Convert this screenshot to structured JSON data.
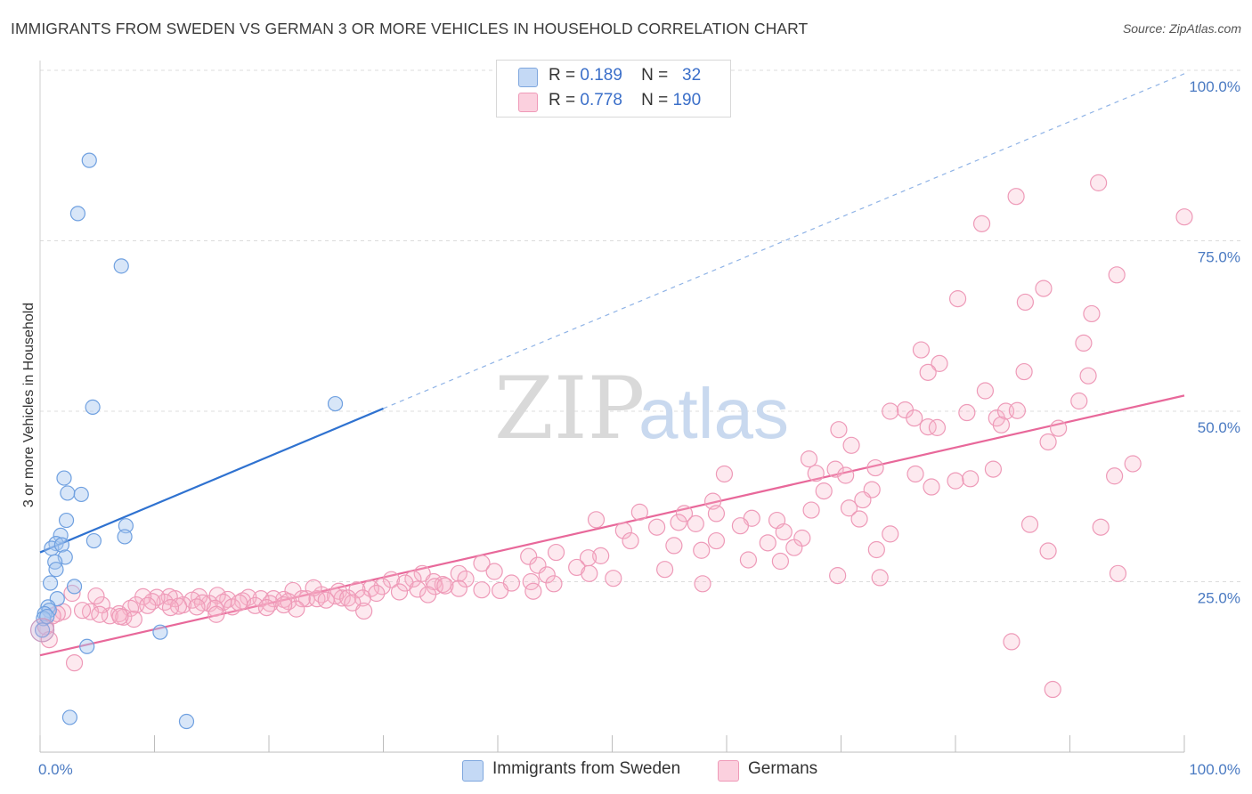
{
  "header": {
    "title": "IMMIGRANTS FROM SWEDEN VS GERMAN 3 OR MORE VEHICLES IN HOUSEHOLD CORRELATION CHART",
    "source": "Source: ZipAtlas.com"
  },
  "watermark": {
    "zip": "ZIP",
    "atlas": "atlas"
  },
  "legend": {
    "rows": [
      {
        "r_label": "R =",
        "r_value": "0.189",
        "n_label": "N =",
        "n_value": "32",
        "color": "#a8c8f0"
      },
      {
        "r_label": "R =",
        "r_value": "0.778",
        "n_label": "N =",
        "n_value": "190",
        "color": "#f7b6cb"
      }
    ]
  },
  "bottom_legend": {
    "series1": "Immigrants from Sweden",
    "series2": "Germans"
  },
  "chart_data": {
    "type": "scatter",
    "title": "IMMIGRANTS FROM SWEDEN VS GERMAN 3 OR MORE VEHICLES IN HOUSEHOLD CORRELATION CHART",
    "ylabel": "3 or more Vehicles in Household",
    "xlabel": "",
    "x_tick_labels": [
      "0.0%",
      "100.0%"
    ],
    "y_tick_labels": [
      "25.0%",
      "50.0%",
      "75.0%",
      "100.0%"
    ],
    "xlim": [
      0,
      100
    ],
    "ylim": [
      0,
      100
    ],
    "grid": true,
    "legend_position": "top-center",
    "colors": {
      "blue": "#6fa0e0",
      "blue_line": "#2f72d0",
      "pink": "#f08fb0",
      "pink_line": "#e8689a",
      "tick": "#4a7ac2"
    },
    "series": [
      {
        "name": "Immigrants from Sweden",
        "r": 0.189,
        "n": 32,
        "trend": {
          "x0": 0,
          "y0": 29.3,
          "x1": 30,
          "y1": 50.4,
          "dashed_to": [
            100,
            99.5
          ]
        },
        "points": [
          [
            4.3,
            86.8
          ],
          [
            3.3,
            79.0
          ],
          [
            7.1,
            71.3
          ],
          [
            4.6,
            50.6
          ],
          [
            25.8,
            51.1
          ],
          [
            2.1,
            40.2
          ],
          [
            2.4,
            38.0
          ],
          [
            3.6,
            37.8
          ],
          [
            2.3,
            34.0
          ],
          [
            7.5,
            33.2
          ],
          [
            1.8,
            31.8
          ],
          [
            1.4,
            30.6
          ],
          [
            4.7,
            31.0
          ],
          [
            7.4,
            31.6
          ],
          [
            1.0,
            29.9
          ],
          [
            1.9,
            30.4
          ],
          [
            2.2,
            28.6
          ],
          [
            1.3,
            27.9
          ],
          [
            1.4,
            26.8
          ],
          [
            0.9,
            24.8
          ],
          [
            3.0,
            24.3
          ],
          [
            1.5,
            22.5
          ],
          [
            0.7,
            21.3
          ],
          [
            0.8,
            20.8
          ],
          [
            0.4,
            20.3
          ],
          [
            0.3,
            19.6
          ],
          [
            0.6,
            19.9
          ],
          [
            0.2,
            17.9
          ],
          [
            10.5,
            17.6
          ],
          [
            4.1,
            15.5
          ],
          [
            2.6,
            5.1
          ],
          [
            12.8,
            4.5
          ]
        ]
      },
      {
        "name": "Germans",
        "r": 0.778,
        "n": 190,
        "trend": {
          "x0": 0,
          "y0": 14.2,
          "x1": 100,
          "y1": 52.3
        },
        "points": [
          [
            92.5,
            83.5
          ],
          [
            85.3,
            81.5
          ],
          [
            100.0,
            78.5
          ],
          [
            82.3,
            77.5
          ],
          [
            94.1,
            70.0
          ],
          [
            87.7,
            68.0
          ],
          [
            80.2,
            66.5
          ],
          [
            86.1,
            66.0
          ],
          [
            91.9,
            64.3
          ],
          [
            91.2,
            60.0
          ],
          [
            77.0,
            59.0
          ],
          [
            78.6,
            57.0
          ],
          [
            77.6,
            55.7
          ],
          [
            86.0,
            55.8
          ],
          [
            91.6,
            55.2
          ],
          [
            82.6,
            53.0
          ],
          [
            75.6,
            50.2
          ],
          [
            74.3,
            50.0
          ],
          [
            90.8,
            51.5
          ],
          [
            81.0,
            49.8
          ],
          [
            83.6,
            49.0
          ],
          [
            84.4,
            50.0
          ],
          [
            85.4,
            50.1
          ],
          [
            76.4,
            49.0
          ],
          [
            77.6,
            47.7
          ],
          [
            69.8,
            47.3
          ],
          [
            84.0,
            48.0
          ],
          [
            89.0,
            47.5
          ],
          [
            88.1,
            45.5
          ],
          [
            70.9,
            45.0
          ],
          [
            67.2,
            43.0
          ],
          [
            95.5,
            42.3
          ],
          [
            73.0,
            41.7
          ],
          [
            69.5,
            41.5
          ],
          [
            59.8,
            40.8
          ],
          [
            83.3,
            41.5
          ],
          [
            76.5,
            40.8
          ],
          [
            70.4,
            40.6
          ],
          [
            81.3,
            40.1
          ],
          [
            93.9,
            40.5
          ],
          [
            68.5,
            38.3
          ],
          [
            72.7,
            38.5
          ],
          [
            77.9,
            38.9
          ],
          [
            71.9,
            37.0
          ],
          [
            58.8,
            36.8
          ],
          [
            70.7,
            35.8
          ],
          [
            67.4,
            35.5
          ],
          [
            59.1,
            35.0
          ],
          [
            52.4,
            35.2
          ],
          [
            56.3,
            35.0
          ],
          [
            62.2,
            34.3
          ],
          [
            64.4,
            34.0
          ],
          [
            48.6,
            34.1
          ],
          [
            71.6,
            34.2
          ],
          [
            55.8,
            33.7
          ],
          [
            57.3,
            33.5
          ],
          [
            53.9,
            33.0
          ],
          [
            61.2,
            33.2
          ],
          [
            65.0,
            32.3
          ],
          [
            74.3,
            32.0
          ],
          [
            86.5,
            33.4
          ],
          [
            51.0,
            32.5
          ],
          [
            66.6,
            31.4
          ],
          [
            51.6,
            31.0
          ],
          [
            59.1,
            31.0
          ],
          [
            63.6,
            30.7
          ],
          [
            55.4,
            30.3
          ],
          [
            73.1,
            29.7
          ],
          [
            57.8,
            29.6
          ],
          [
            45.1,
            29.3
          ],
          [
            88.1,
            29.5
          ],
          [
            42.7,
            28.7
          ],
          [
            49.0,
            28.8
          ],
          [
            47.9,
            28.5
          ],
          [
            64.7,
            28.0
          ],
          [
            38.6,
            27.7
          ],
          [
            43.5,
            27.4
          ],
          [
            46.9,
            27.1
          ],
          [
            54.6,
            26.8
          ],
          [
            39.7,
            26.5
          ],
          [
            36.6,
            26.2
          ],
          [
            69.7,
            25.9
          ],
          [
            48.0,
            26.2
          ],
          [
            44.3,
            26.0
          ],
          [
            94.2,
            26.2
          ],
          [
            33.4,
            26.2
          ],
          [
            32.6,
            25.4
          ],
          [
            34.4,
            25.0
          ],
          [
            30.7,
            25.3
          ],
          [
            37.2,
            25.4
          ],
          [
            50.1,
            25.5
          ],
          [
            42.9,
            25.0
          ],
          [
            41.2,
            24.8
          ],
          [
            35.2,
            24.6
          ],
          [
            44.9,
            24.7
          ],
          [
            31.9,
            24.8
          ],
          [
            36.6,
            24.0
          ],
          [
            29.9,
            24.3
          ],
          [
            34.5,
            24.3
          ],
          [
            28.9,
            24.0
          ],
          [
            38.6,
            23.8
          ],
          [
            40.2,
            23.7
          ],
          [
            33.0,
            23.9
          ],
          [
            31.4,
            23.5
          ],
          [
            35.4,
            24.4
          ],
          [
            27.7,
            23.8
          ],
          [
            29.4,
            23.3
          ],
          [
            26.1,
            23.6
          ],
          [
            24.6,
            23.1
          ],
          [
            22.1,
            23.7
          ],
          [
            23.3,
            22.5
          ],
          [
            26.4,
            22.6
          ],
          [
            25.8,
            22.9
          ],
          [
            24.2,
            22.5
          ],
          [
            22.9,
            22.5
          ],
          [
            21.3,
            22.4
          ],
          [
            20.4,
            22.5
          ],
          [
            19.3,
            22.5
          ],
          [
            18.2,
            22.7
          ],
          [
            17.7,
            22.2
          ],
          [
            16.4,
            22.4
          ],
          [
            15.5,
            23.0
          ],
          [
            16.0,
            22.0
          ],
          [
            14.8,
            21.8
          ],
          [
            13.9,
            22.8
          ],
          [
            13.3,
            22.3
          ],
          [
            12.5,
            21.6
          ],
          [
            11.8,
            22.5
          ],
          [
            11.3,
            22.8
          ],
          [
            10.9,
            22.0
          ],
          [
            10.2,
            22.7
          ],
          [
            9.8,
            22.1
          ],
          [
            9.0,
            22.8
          ],
          [
            8.4,
            21.6
          ],
          [
            12.1,
            21.4
          ],
          [
            14.2,
            21.9
          ],
          [
            16.8,
            21.3
          ],
          [
            17.4,
            21.9
          ],
          [
            18.8,
            21.5
          ],
          [
            20.1,
            21.8
          ],
          [
            21.7,
            22.1
          ],
          [
            23.9,
            24.1
          ],
          [
            26.9,
            22.6
          ],
          [
            28.2,
            22.6
          ],
          [
            25.0,
            22.3
          ],
          [
            22.4,
            21.0
          ],
          [
            19.8,
            21.2
          ],
          [
            15.3,
            21.1
          ],
          [
            13.7,
            21.3
          ],
          [
            11.4,
            21.2
          ],
          [
            9.4,
            21.5
          ],
          [
            7.9,
            21.1
          ],
          [
            6.9,
            20.3
          ],
          [
            6.1,
            20.0
          ],
          [
            7.3,
            19.8
          ],
          [
            8.2,
            19.5
          ],
          [
            5.4,
            21.6
          ],
          [
            4.4,
            20.6
          ],
          [
            4.9,
            22.9
          ],
          [
            2.8,
            23.3
          ],
          [
            3.7,
            20.8
          ],
          [
            2.0,
            20.6
          ],
          [
            1.5,
            20.3
          ],
          [
            0.5,
            18.4
          ],
          [
            1.1,
            20.0
          ],
          [
            0.8,
            16.5
          ],
          [
            3.0,
            13.1
          ],
          [
            5.2,
            20.2
          ],
          [
            7.0,
            19.9
          ],
          [
            15.4,
            20.2
          ],
          [
            21.3,
            21.6
          ],
          [
            27.3,
            21.9
          ],
          [
            28.3,
            20.7
          ],
          [
            33.9,
            23.1
          ],
          [
            43.1,
            23.6
          ],
          [
            80.0,
            39.8
          ],
          [
            78.4,
            47.6
          ],
          [
            65.9,
            30.0
          ],
          [
            73.4,
            25.6
          ],
          [
            61.9,
            28.2
          ],
          [
            57.9,
            24.7
          ],
          [
            67.8,
            40.9
          ],
          [
            88.5,
            9.2
          ],
          [
            84.9,
            16.2
          ],
          [
            92.7,
            33.0
          ]
        ]
      }
    ]
  }
}
